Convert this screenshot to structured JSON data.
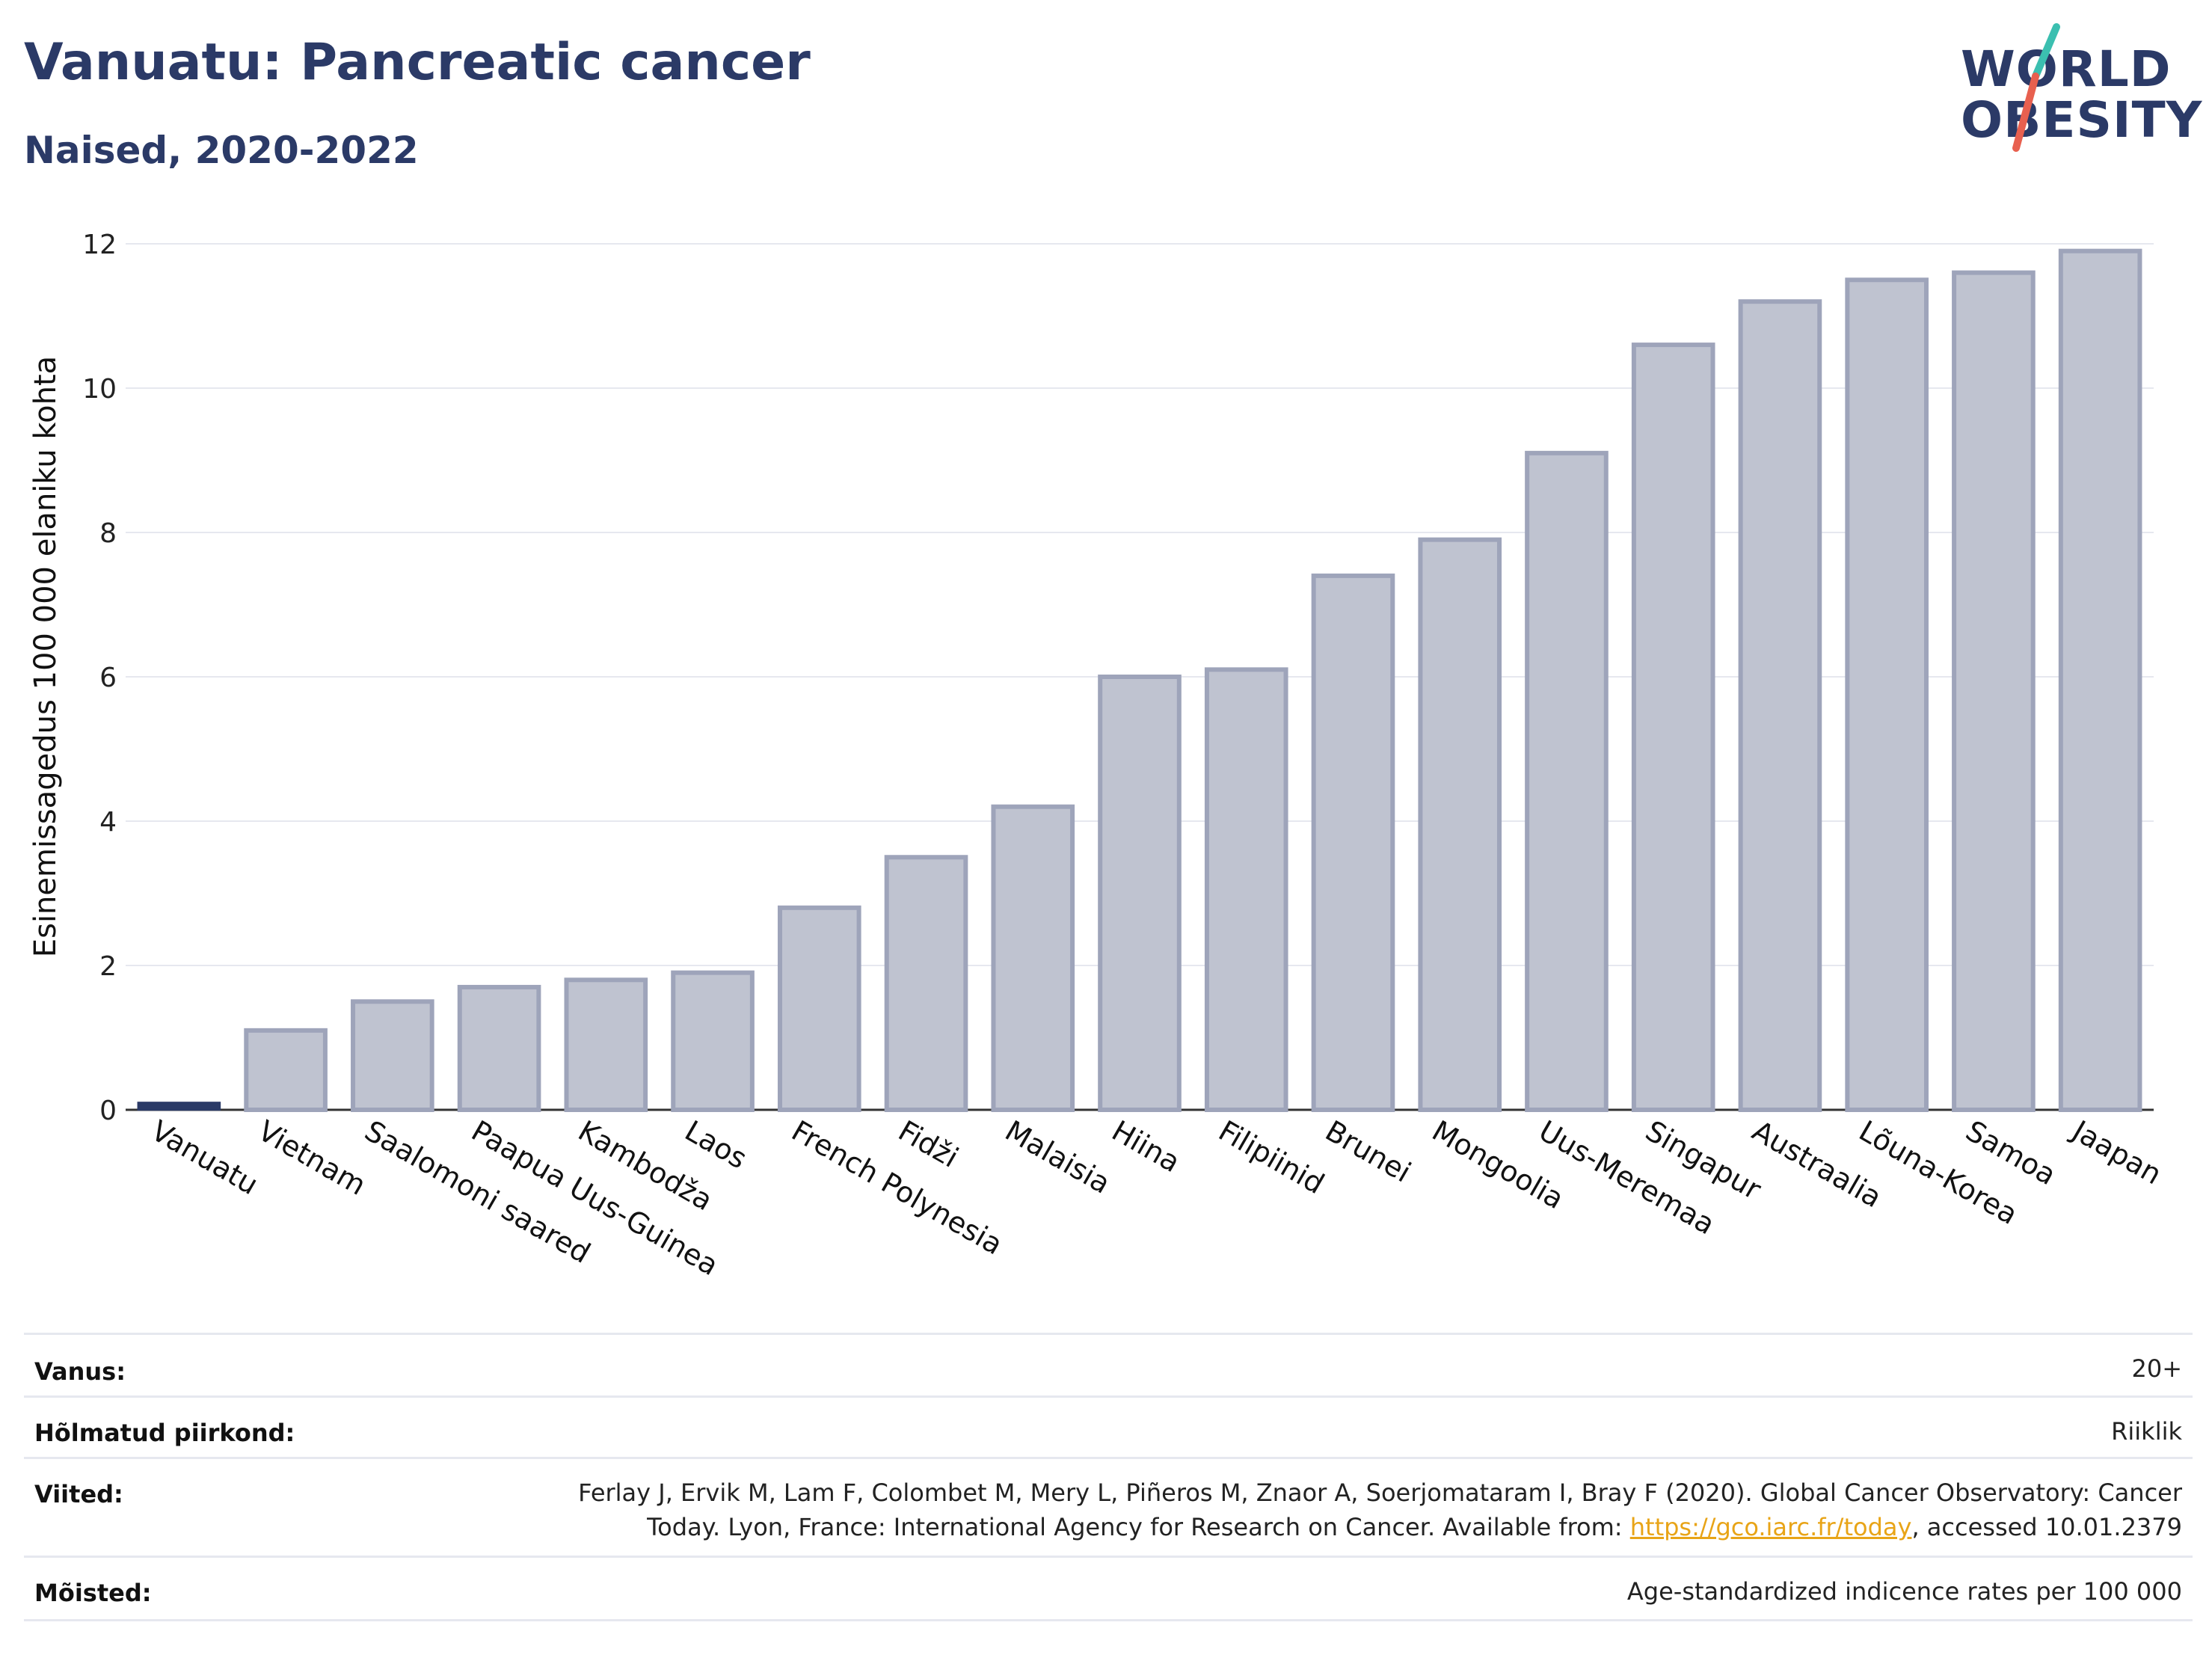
{
  "header": {
    "title": "Vanuatu: Pancreatic cancer",
    "subtitle": "Naised, 2020-2022"
  },
  "logo": {
    "line1": "WORLD",
    "line2": "OBESITY",
    "accent_colors": [
      "#3bbfb0",
      "#e8604f"
    ]
  },
  "chart_data": {
    "type": "bar",
    "categories": [
      "Vanuatu",
      "Vietnam",
      "Saalomoni saared",
      "Paapua Uus-Guinea",
      "Kambodža",
      "Laos",
      "French Polynesia",
      "Fidži",
      "Malaisia",
      "Hiina",
      "Filipiinid",
      "Brunei",
      "Mongoolia",
      "Uus-Meremaa",
      "Singapur",
      "Austraalia",
      "Lõuna-Korea",
      "Samoa",
      "Jaapan"
    ],
    "values": [
      0.05,
      1.1,
      1.5,
      1.7,
      1.8,
      1.9,
      2.8,
      3.5,
      4.2,
      6.0,
      6.1,
      7.4,
      7.9,
      9.1,
      10.6,
      11.2,
      11.5,
      11.6,
      11.9
    ],
    "highlight": "Vanuatu",
    "ylabel": "Esinemissagedus 100 000 elaniku kohta",
    "ylim": [
      0,
      12
    ],
    "yticks": [
      0,
      2,
      4,
      6,
      8,
      10,
      12
    ],
    "grid": true,
    "colors": {
      "bar_fill": "#bfc3d0",
      "bar_stroke": "#9ea4ba",
      "highlight": "#2b3a67",
      "grid": "#e6e8ef"
    }
  },
  "info_table": [
    {
      "label": "Vanus:",
      "value": "20+"
    },
    {
      "label": "Hõlmatud piirkond:",
      "value": "Riiklik"
    },
    {
      "label": "Viited:",
      "value_line1": "Ferlay J, Ervik M, Lam F, Colombet M, Mery L, Piñeros M, Znaor A, Soerjomataram I, Bray F (2020). Global Cancer Observatory: Cancer",
      "value_line2_pre": "Today. Lyon, France: International Agency for Research on Cancer. Available from: ",
      "link": "https://gco.iarc.fr/today",
      "value_line2_post": ", accessed 10.01.2379"
    },
    {
      "label": "Mõisted:",
      "value": "Age-standardized indicence rates per 100 000"
    }
  ]
}
